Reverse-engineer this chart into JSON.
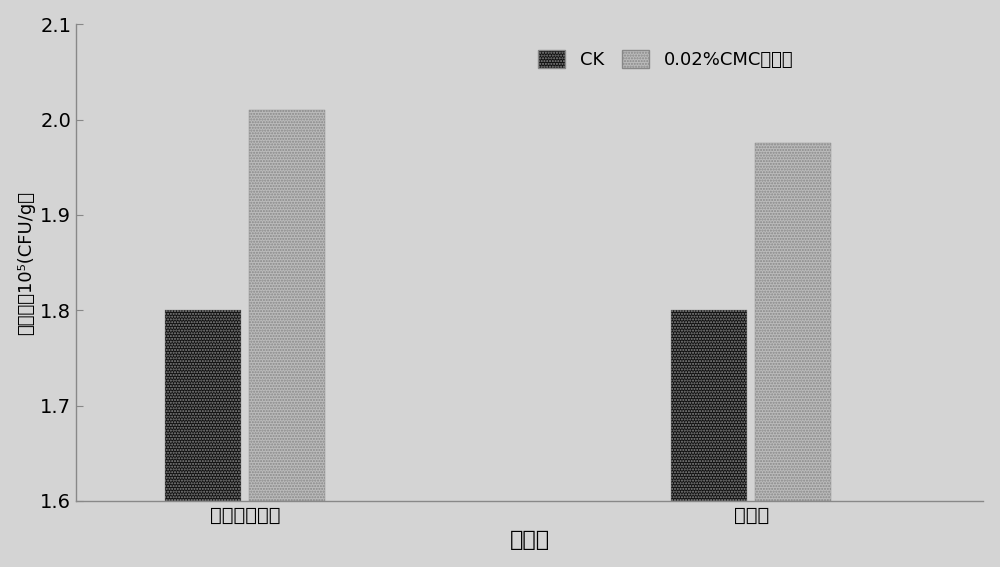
{
  "categories": [
    "牛肉膏蛋白胨",
    "马丁氏"
  ],
  "ck_values": [
    1.8,
    1.8
  ],
  "cmc_values": [
    2.01,
    1.975
  ],
  "xlabel": "培养基",
  "ylabel": "菌落数量10⁵(CFU/g）",
  "ylim": [
    1.6,
    2.1
  ],
  "yticks": [
    1.6,
    1.7,
    1.8,
    1.9,
    2.0,
    2.1
  ],
  "legend_ck": "CK",
  "legend_cmc": "0.02%CMC硒酸铵",
  "bar_width": 0.18,
  "background_color": "#d4d4d4",
  "ck_facecolor": "#111111",
  "cmc_facecolor": "#bbbbbb",
  "xlabel_fontsize": 16,
  "ylabel_fontsize": 13,
  "tick_fontsize": 14,
  "legend_fontsize": 13,
  "title_fontsize": 14
}
